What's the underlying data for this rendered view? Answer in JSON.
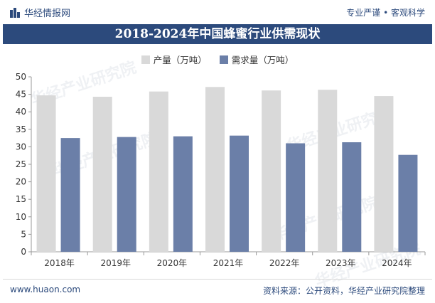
{
  "header": {
    "brand": "华经情报网",
    "tagline": "专业严谨 • 客观科学"
  },
  "title": "2018-2024年中国蜂蜜行业供需现状",
  "footer": {
    "url": "www.huaon.com",
    "source": "资料来源：公开资料，华经产业研究院整理"
  },
  "watermark": "华经产业研究院",
  "colors": {
    "production": "#d9d9d9",
    "demand": "#6b7fa8",
    "accent": "#2c4a7c"
  },
  "chart_data": {
    "type": "bar",
    "title": "2018-2024年中国蜂蜜行业供需现状",
    "categories": [
      "2018年",
      "2019年",
      "2020年",
      "2021年",
      "2022年",
      "2023年",
      "2024年"
    ],
    "series": [
      {
        "name": "产量（万吨）",
        "values": [
          44.7,
          44.3,
          45.8,
          47.1,
          46.1,
          46.3,
          44.5
        ]
      },
      {
        "name": "需求量（万吨）",
        "values": [
          32.5,
          32.8,
          33.0,
          33.2,
          31.0,
          31.3,
          27.7
        ]
      }
    ],
    "ylim": [
      0,
      50
    ],
    "yticks": [
      0,
      5,
      10,
      15,
      20,
      25,
      30,
      35,
      40,
      45,
      50
    ],
    "grid": false,
    "legend": "top-center"
  }
}
